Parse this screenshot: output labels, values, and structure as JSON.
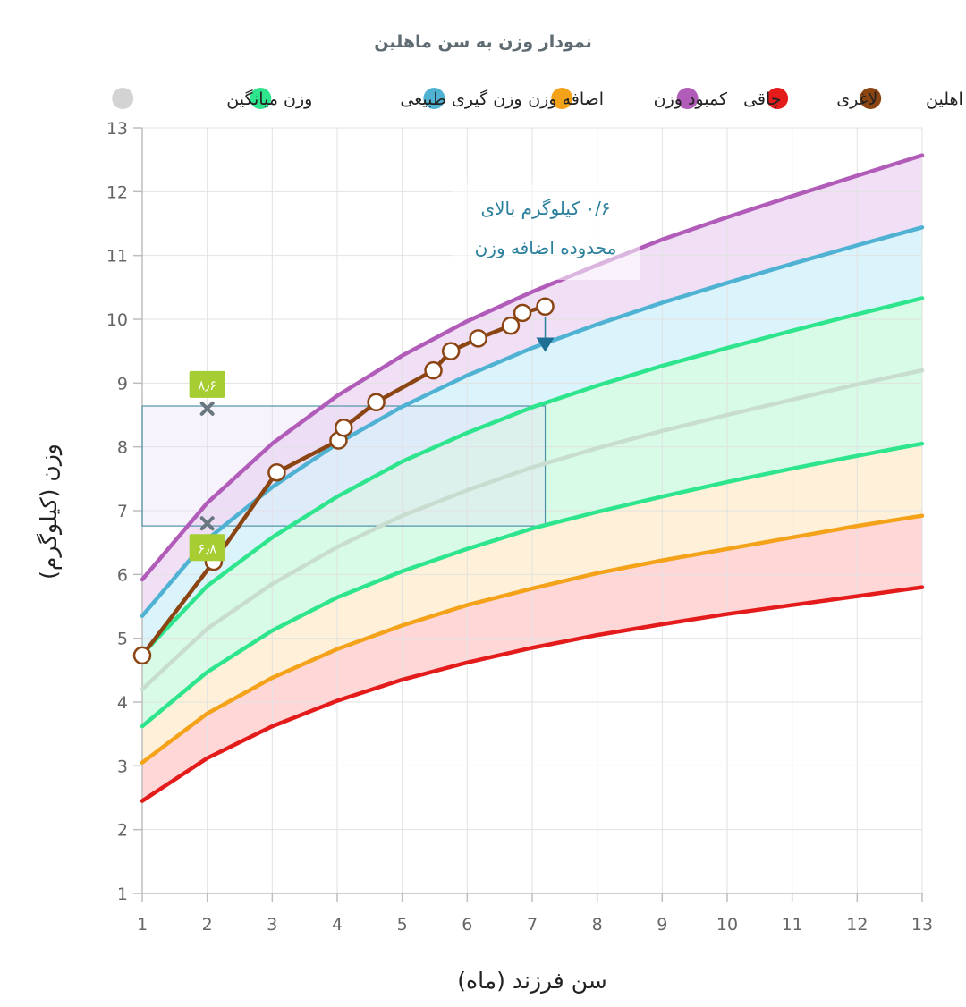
{
  "chart_data": {
    "type": "line",
    "title": "نمودار وزن به سن ماهلین",
    "xlabel": "سن فرزند (ماه)",
    "ylabel": "وزن (کیلوگرم)",
    "xlim": [
      1,
      13
    ],
    "ylim": [
      1,
      13
    ],
    "x_ticks": [
      "1",
      "2",
      "3",
      "4",
      "5",
      "6",
      "7",
      "8",
      "9",
      "10",
      "11",
      "12",
      "13"
    ],
    "y_ticks": [
      "1",
      "2",
      "3",
      "4",
      "5",
      "6",
      "7",
      "8",
      "9",
      "10",
      "11",
      "12",
      "13"
    ],
    "grid": true,
    "legend_position": "top",
    "legend": [
      {
        "label": "اهلین",
        "color": "#8B4513"
      },
      {
        "label": "لاغری",
        "color": "#E41B1B"
      },
      {
        "label": "چاقی",
        "color": "#B05CB8"
      },
      {
        "label": "کمبود وزن",
        "color": "#F4A21A"
      },
      {
        "label": "اضافه وزن",
        "color": "#4FB2D3"
      },
      {
        "label": "وزن گیری طبیعی",
        "color": "#2EE58E"
      },
      {
        "label": "وزن میانگین",
        "color": "#D3D3D3"
      }
    ],
    "x": [
      1,
      2,
      3,
      4,
      5,
      6,
      7,
      8,
      9,
      10,
      11,
      12,
      13
    ],
    "curves": [
      {
        "key": "thinness",
        "color": "#E41B1B",
        "values": [
          2.45,
          3.12,
          3.62,
          4.02,
          4.35,
          4.62,
          4.85,
          5.05,
          5.22,
          5.38,
          5.52,
          5.66,
          5.8
        ]
      },
      {
        "key": "underweight",
        "color": "#F4A21A",
        "values": [
          3.05,
          3.82,
          4.38,
          4.83,
          5.2,
          5.52,
          5.78,
          6.02,
          6.22,
          6.4,
          6.58,
          6.76,
          6.92
        ]
      },
      {
        "key": "normal_low",
        "color": "#2EE58E",
        "values": [
          3.62,
          4.47,
          5.12,
          5.64,
          6.05,
          6.4,
          6.72,
          6.98,
          7.22,
          7.45,
          7.66,
          7.86,
          8.05
        ]
      },
      {
        "key": "average",
        "color": "#C8DCCF",
        "values": [
          4.2,
          5.15,
          5.85,
          6.43,
          6.92,
          7.32,
          7.68,
          7.98,
          8.25,
          8.5,
          8.74,
          8.98,
          9.2
        ]
      },
      {
        "key": "normal_high",
        "color": "#2EE58E",
        "values": [
          4.75,
          5.82,
          6.58,
          7.22,
          7.77,
          8.22,
          8.62,
          8.96,
          9.27,
          9.55,
          9.82,
          10.08,
          10.33
        ]
      },
      {
        "key": "overweight",
        "color": "#4FB2D3",
        "values": [
          5.35,
          6.55,
          7.37,
          8.05,
          8.63,
          9.12,
          9.55,
          9.92,
          10.26,
          10.57,
          10.87,
          11.16,
          11.44
        ]
      },
      {
        "key": "obesity",
        "color": "#B05CB8",
        "values": [
          5.92,
          7.12,
          8.05,
          8.8,
          9.43,
          9.97,
          10.43,
          10.85,
          11.25,
          11.6,
          11.93,
          12.25,
          12.57
        ]
      }
    ],
    "bands": [
      {
        "from": "thinness",
        "to": "underweight",
        "color": "#FF9C9C"
      },
      {
        "from": "underweight",
        "to": "normal_low",
        "color": "#FFDDA0"
      },
      {
        "from": "normal_low",
        "to": "normal_high",
        "color": "#9CF5C4"
      },
      {
        "from": "normal_high",
        "to": "overweight",
        "color": "#A6E2F4"
      },
      {
        "from": "overweight",
        "to": "obesity",
        "color": "#DDB0E6"
      }
    ],
    "series": [
      {
        "name": "اهلین",
        "color": "#8B4513",
        "points": [
          [
            1,
            4.73
          ],
          [
            2.1,
            6.2
          ],
          [
            3.07,
            7.6
          ],
          [
            4.02,
            8.1
          ],
          [
            4.1,
            8.3
          ],
          [
            4.6,
            8.7
          ],
          [
            5.48,
            9.2
          ],
          [
            5.75,
            9.5
          ],
          [
            6.17,
            9.7
          ],
          [
            6.67,
            9.9
          ],
          [
            6.85,
            10.1
          ],
          [
            7.2,
            10.2
          ]
        ]
      }
    ],
    "markers": [
      {
        "x": 2,
        "y": 8.6,
        "label": "۸٫۶"
      },
      {
        "x": 2,
        "y": 6.8,
        "label": "۶٫۸"
      }
    ],
    "range_box": {
      "x0": 1,
      "x1": 7.2,
      "y0": 6.76,
      "y1": 8.64
    },
    "annotation": {
      "lines": [
        "۰/۶ کیلوگرم بالای",
        "محدوده اضافه وزن"
      ],
      "arrow_x": 7.2,
      "arrow_y0": 10.2,
      "arrow_y1": 9.6
    }
  }
}
